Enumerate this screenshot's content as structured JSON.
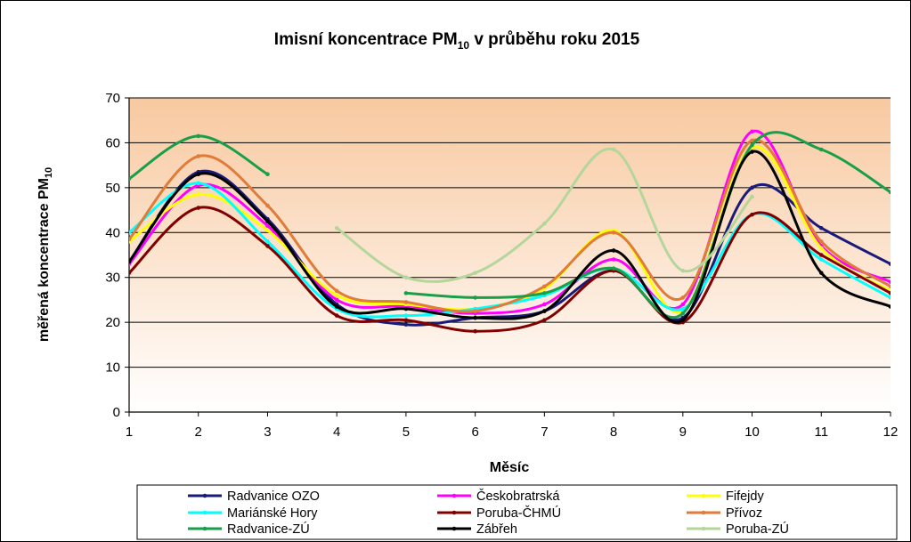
{
  "chart_data": {
    "type": "line",
    "title": "Imisní koncentrace PM",
    "title_sub": "10",
    "title_rest": " v průběhu roku 2015",
    "xlabel": "Měsíc",
    "ylabel": "měřená koncentrace PM",
    "ylabel_sub": "10",
    "x": [
      1,
      2,
      3,
      4,
      5,
      6,
      7,
      8,
      9,
      10,
      11,
      12
    ],
    "ylim": [
      0,
      70
    ],
    "yticks": [
      0,
      10,
      20,
      30,
      40,
      50,
      60,
      70
    ],
    "grid": true,
    "legend_position": "bottom",
    "background_gradient": [
      "#f8c9a0",
      "#ffffff"
    ],
    "series": [
      {
        "name": "Radvanice OZO",
        "color": "#1a1a7a",
        "values": [
          33.5,
          53.5,
          43,
          24,
          19.5,
          21,
          22.5,
          31.5,
          21,
          50,
          41,
          33
        ]
      },
      {
        "name": "Českobratrská",
        "color": "#ff00ff",
        "values": [
          33,
          50.5,
          41.5,
          25,
          23.5,
          22,
          24,
          34,
          24,
          62.5,
          37,
          29
        ]
      },
      {
        "name": "Fifejdy",
        "color": "#ffff00",
        "values": [
          38,
          48.5,
          40.5,
          26,
          24,
          23,
          27.5,
          40.5,
          22.5,
          59,
          36.5,
          27
        ]
      },
      {
        "name": "Mariánské Hory",
        "color": "#00ffff",
        "values": [
          40,
          51,
          38,
          23,
          21.5,
          23,
          26,
          32,
          23,
          44,
          34,
          25.5
        ]
      },
      {
        "name": "Poruba-ČHMÚ",
        "color": "#800000",
        "values": [
          31,
          45.5,
          37,
          21.5,
          20.5,
          18,
          20.5,
          31.5,
          20,
          44,
          35,
          26.5
        ]
      },
      {
        "name": "Přívoz",
        "color": "#e07b39",
        "values": [
          38.5,
          57,
          46,
          27,
          24.5,
          22.5,
          28,
          40,
          25.5,
          60.5,
          38,
          28
        ]
      },
      {
        "name": "Radvanice-ZÚ",
        "color": "#1a9e4a",
        "values": [
          52,
          61.5,
          53,
          null,
          26.5,
          25.5,
          26.5,
          32,
          22,
          59.5,
          58.5,
          49
        ]
      },
      {
        "name": "Zábřeh",
        "color": "#000000",
        "values": [
          33.5,
          53,
          42.5,
          23.5,
          23,
          21,
          22.5,
          36,
          20.5,
          58,
          31,
          23.5
        ]
      },
      {
        "name": "Poruba-ZÚ",
        "color": "#b5d69b",
        "values": [
          null,
          null,
          null,
          41,
          30,
          31,
          42,
          58.5,
          31.5,
          48,
          null,
          null
        ]
      }
    ]
  }
}
